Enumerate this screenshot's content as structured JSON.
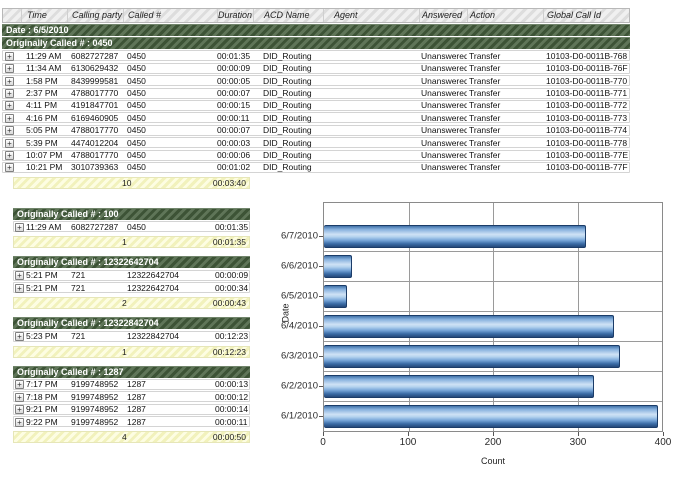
{
  "ui": {
    "expand_icon": "+"
  },
  "table": {
    "columns": {
      "expand": "",
      "time": "Time",
      "calling": "Calling party #",
      "called": "Called #",
      "duration": "Duration",
      "acd": "ACD Name",
      "agent": "Agent",
      "answered": "Answered",
      "action": "Action",
      "global_id": "Global Call Id"
    },
    "date_header": "Date : 6/5/2010"
  },
  "sections": [
    {
      "header": "Originally Called # : 0450",
      "rows": [
        {
          "time": "11:29 AM",
          "calling": "6082727287",
          "called": "0450",
          "duration": "00:01:35",
          "acd": "DID_Routing",
          "agent": "",
          "answered": "Unanswered",
          "action": "Transfer",
          "global_id": "10103-D0-0011B-768"
        },
        {
          "time": "11:34 AM",
          "calling": "6130629432",
          "called": "0450",
          "duration": "00:00:09",
          "acd": "DID_Routing",
          "agent": "",
          "answered": "Unanswered",
          "action": "Transfer",
          "global_id": "10103-D0-0011B-76F"
        },
        {
          "time": "1:58 PM",
          "calling": "8439999581",
          "called": "0450",
          "duration": "00:00:05",
          "acd": "DID_Routing",
          "agent": "",
          "answered": "Unanswered",
          "action": "Transfer",
          "global_id": "10103-D0-0011B-770"
        },
        {
          "time": "2:37 PM",
          "calling": "4788017770",
          "called": "0450",
          "duration": "00:00:07",
          "acd": "DID_Routing",
          "agent": "",
          "answered": "Unanswered",
          "action": "Transfer",
          "global_id": "10103-D0-0011B-771"
        },
        {
          "time": "4:11 PM",
          "calling": "4191847701",
          "called": "0450",
          "duration": "00:00:15",
          "acd": "DID_Routing",
          "agent": "",
          "answered": "Unanswered",
          "action": "Transfer",
          "global_id": "10103-D0-0011B-772"
        },
        {
          "time": "4:16 PM",
          "calling": "6169460905",
          "called": "0450",
          "duration": "00:00:11",
          "acd": "DID_Routing",
          "agent": "",
          "answered": "Unanswered",
          "action": "Transfer",
          "global_id": "10103-D0-0011B-773"
        },
        {
          "time": "5:05 PM",
          "calling": "4788017770",
          "called": "0450",
          "duration": "00:00:07",
          "acd": "DID_Routing",
          "agent": "",
          "answered": "Unanswered",
          "action": "Transfer",
          "global_id": "10103-D0-0011B-774"
        },
        {
          "time": "5:39 PM",
          "calling": "4474012204",
          "called": "0450",
          "duration": "00:00:03",
          "acd": "DID_Routing",
          "agent": "",
          "answered": "Unanswered",
          "action": "Transfer",
          "global_id": "10103-D0-0011B-778"
        },
        {
          "time": "10:07 PM",
          "calling": "4788017770",
          "called": "0450",
          "duration": "00:00:06",
          "acd": "DID_Routing",
          "agent": "",
          "answered": "Unanswered",
          "action": "Transfer",
          "global_id": "10103-D0-0011B-77E"
        },
        {
          "time": "10:21 PM",
          "calling": "3010739363",
          "called": "0450",
          "duration": "00:01:02",
          "acd": "DID_Routing",
          "agent": "",
          "answered": "Unanswered",
          "action": "Transfer",
          "global_id": "10103-D0-0011B-77F"
        }
      ],
      "summary": {
        "count": "10",
        "duration": "00:03:40"
      }
    },
    {
      "header": "Originally Called # : 100",
      "rows": [
        {
          "time": "11:29 AM",
          "calling": "6082727287",
          "called": "0450",
          "duration": "00:01:35"
        }
      ],
      "summary": {
        "count": "1",
        "duration": "00:01:35"
      }
    },
    {
      "header": "Originally Called # : 12322642704",
      "rows": [
        {
          "time": "5:21 PM",
          "calling": "721",
          "called": "12322642704",
          "duration": "00:00:09"
        },
        {
          "time": "5:21 PM",
          "calling": "721",
          "called": "12322642704",
          "duration": "00:00:34"
        }
      ],
      "summary": {
        "count": "2",
        "duration": "00:00:43"
      }
    },
    {
      "header": "Originally Called # : 12322842704",
      "rows": [
        {
          "time": "5:23 PM",
          "calling": "721",
          "called": "12322842704",
          "duration": "00:12:23"
        }
      ],
      "summary": {
        "count": "1",
        "duration": "00:12:23"
      }
    },
    {
      "header": "Originally Called # : 1287",
      "rows": [
        {
          "time": "7:17 PM",
          "calling": "9199748952",
          "called": "1287",
          "duration": "00:00:13"
        },
        {
          "time": "7:18 PM",
          "calling": "9199748952",
          "called": "1287",
          "duration": "00:00:12"
        },
        {
          "time": "9:21 PM",
          "calling": "9199748952",
          "called": "1287",
          "duration": "00:00:14"
        },
        {
          "time": "9:22 PM",
          "calling": "9199748952",
          "called": "1287",
          "duration": "00:00:11"
        }
      ],
      "summary": {
        "count": "4",
        "duration": "00:00:50"
      }
    }
  ],
  "chart_data": {
    "type": "bar",
    "orientation": "horizontal",
    "title": "",
    "categories": [
      "6/7/2010",
      "6/6/2010",
      "6/5/2010",
      "6/4/2010",
      "6/3/2010",
      "6/2/2010",
      "6/1/2010"
    ],
    "values": [
      310,
      33,
      27,
      343,
      350,
      320,
      395
    ],
    "xlabel": "Count",
    "ylabel": "Date",
    "xlim": [
      0,
      400
    ],
    "xticks": [
      0,
      100,
      200,
      300,
      400
    ],
    "grid": true,
    "bar_color": "#6fa3d8",
    "bar_border_color": "#1b3c68",
    "legend": "none"
  }
}
